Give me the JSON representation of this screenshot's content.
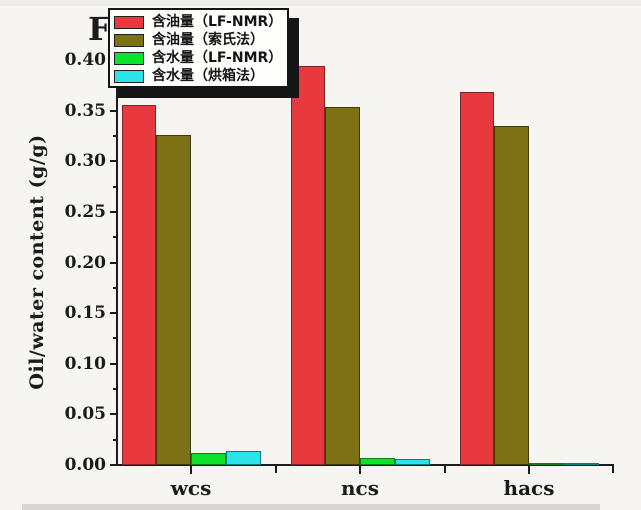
{
  "panel_label": "F",
  "colors": {
    "axis": "#1b1b1b",
    "background": "#f7f5f2",
    "legend_background": "#fdfdfc",
    "legend_shadow": "#151515"
  },
  "chart_data": {
    "type": "bar",
    "title": "",
    "categories": [
      "wcs",
      "ncs",
      "hacs"
    ],
    "series": [
      {
        "id": "oil-lf-nmr",
        "name": "含油量（LF-NMR）",
        "color": "#e8393f",
        "border": "#7e2326",
        "values": [
          0.356,
          0.394,
          0.368
        ]
      },
      {
        "id": "oil-soxhlet",
        "name": "含油量（索氏法）",
        "color": "#7c7114",
        "border": "#3f3a08",
        "values": [
          0.326,
          0.354,
          0.335
        ]
      },
      {
        "id": "water-lf-nmr",
        "name": "含水量（LF-NMR）",
        "color": "#0be32a",
        "border": "#0c7d1b",
        "values": [
          0.012,
          0.007,
          0.002
        ]
      },
      {
        "id": "water-oven",
        "name": "含水量（烘箱法）",
        "color": "#2ee2e9",
        "border": "#0d7b85",
        "values": [
          0.014,
          0.006,
          0.002
        ]
      }
    ],
    "xlabel": "",
    "ylabel": "Oil/water content (g/g)",
    "ylim": [
      0,
      0.4
    ],
    "y_ticks": [
      "0.00",
      "0.05",
      "0.10",
      "0.15",
      "0.20",
      "0.25",
      "0.30",
      "0.35",
      "0.40"
    ],
    "y_minor_tick_step": 0.025,
    "legend_position": "top-left",
    "grid": false
  }
}
